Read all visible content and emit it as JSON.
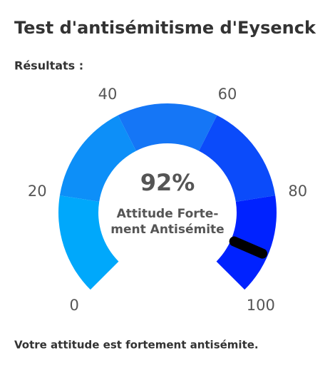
{
  "header": {
    "title": "Test d'antisémitisme d'Eysenck"
  },
  "section_label": "Résultats :",
  "chart_data": {
    "type": "gauge",
    "value": 92,
    "value_label": "92%",
    "sublabel": [
      "Attitude Forte-",
      "ment Antisémite"
    ],
    "ylim": [
      0,
      100
    ],
    "yticks": [
      0,
      20,
      40,
      60,
      80,
      100
    ],
    "band_colors": [
      "#00a8fb",
      "#0d8ff8",
      "#1576f6",
      "#0b4bfa",
      "#0022ff"
    ],
    "needle_color": "#000000"
  },
  "footer": "Votre attitude est fortement antisémite."
}
